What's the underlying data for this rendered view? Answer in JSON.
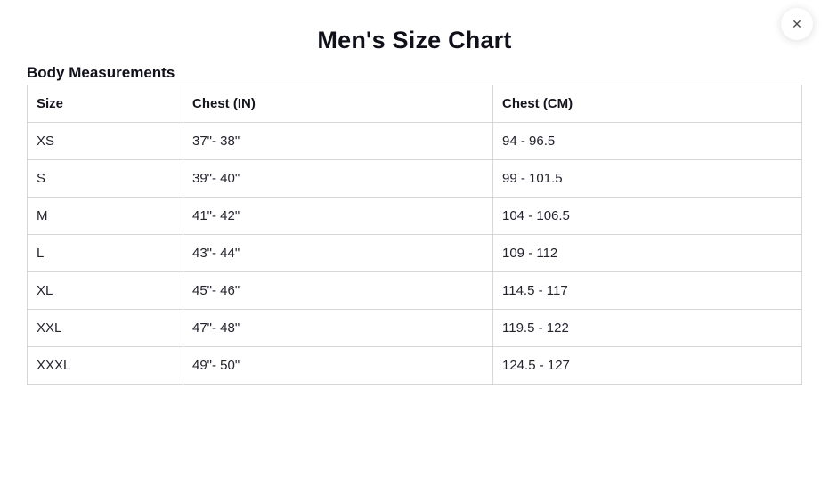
{
  "modal": {
    "title": "Men's Size Chart",
    "section_heading": "Body Measurements",
    "close_label": "✕"
  },
  "chart_data": {
    "type": "table",
    "title": "Men's Size Chart",
    "section": "Body Measurements",
    "columns": [
      "Size",
      "Chest (IN)",
      "Chest (CM)"
    ],
    "rows": [
      [
        "XS",
        "37\"- 38\"",
        "94 - 96.5"
      ],
      [
        "S",
        "39\"- 40\"",
        "99 - 101.5"
      ],
      [
        "M",
        "41\"- 42\"",
        "104 - 106.5"
      ],
      [
        "L",
        "43\"- 44\"",
        "109 - 112"
      ],
      [
        "XL",
        "45\"- 46\"",
        "114.5 - 117"
      ],
      [
        "XXL",
        "47\"- 48\"",
        "119.5 - 122"
      ],
      [
        "XXXL",
        "49\"- 50\"",
        "124.5 - 127"
      ]
    ]
  },
  "colors": {
    "background": "#ffffff",
    "heading_text": "#10101a",
    "cell_text": "#23232e",
    "table_border": "#d6d6d6",
    "close_icon": "#4a4a4a"
  }
}
